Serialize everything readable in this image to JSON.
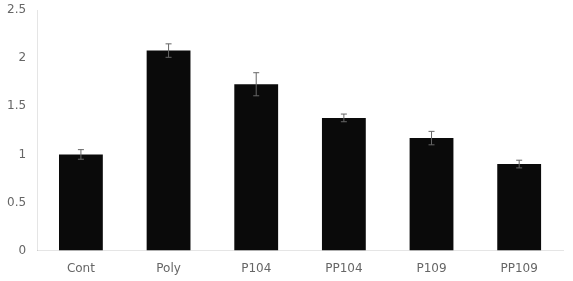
{
  "chart_data": {
    "type": "bar",
    "categories": [
      "Cont",
      "Poly",
      "P104",
      "PP104",
      "P109",
      "PP109"
    ],
    "values": [
      1.0,
      2.08,
      1.73,
      1.38,
      1.17,
      0.9
    ],
    "errors": [
      0.05,
      0.07,
      0.12,
      0.04,
      0.07,
      0.04
    ],
    "color": "#0a0a0a",
    "error_color": "#666666",
    "ylim": [
      0,
      2.5
    ],
    "yticks": [
      0,
      0.5,
      1.0,
      1.5,
      2.0,
      2.5
    ],
    "grid": false
  }
}
